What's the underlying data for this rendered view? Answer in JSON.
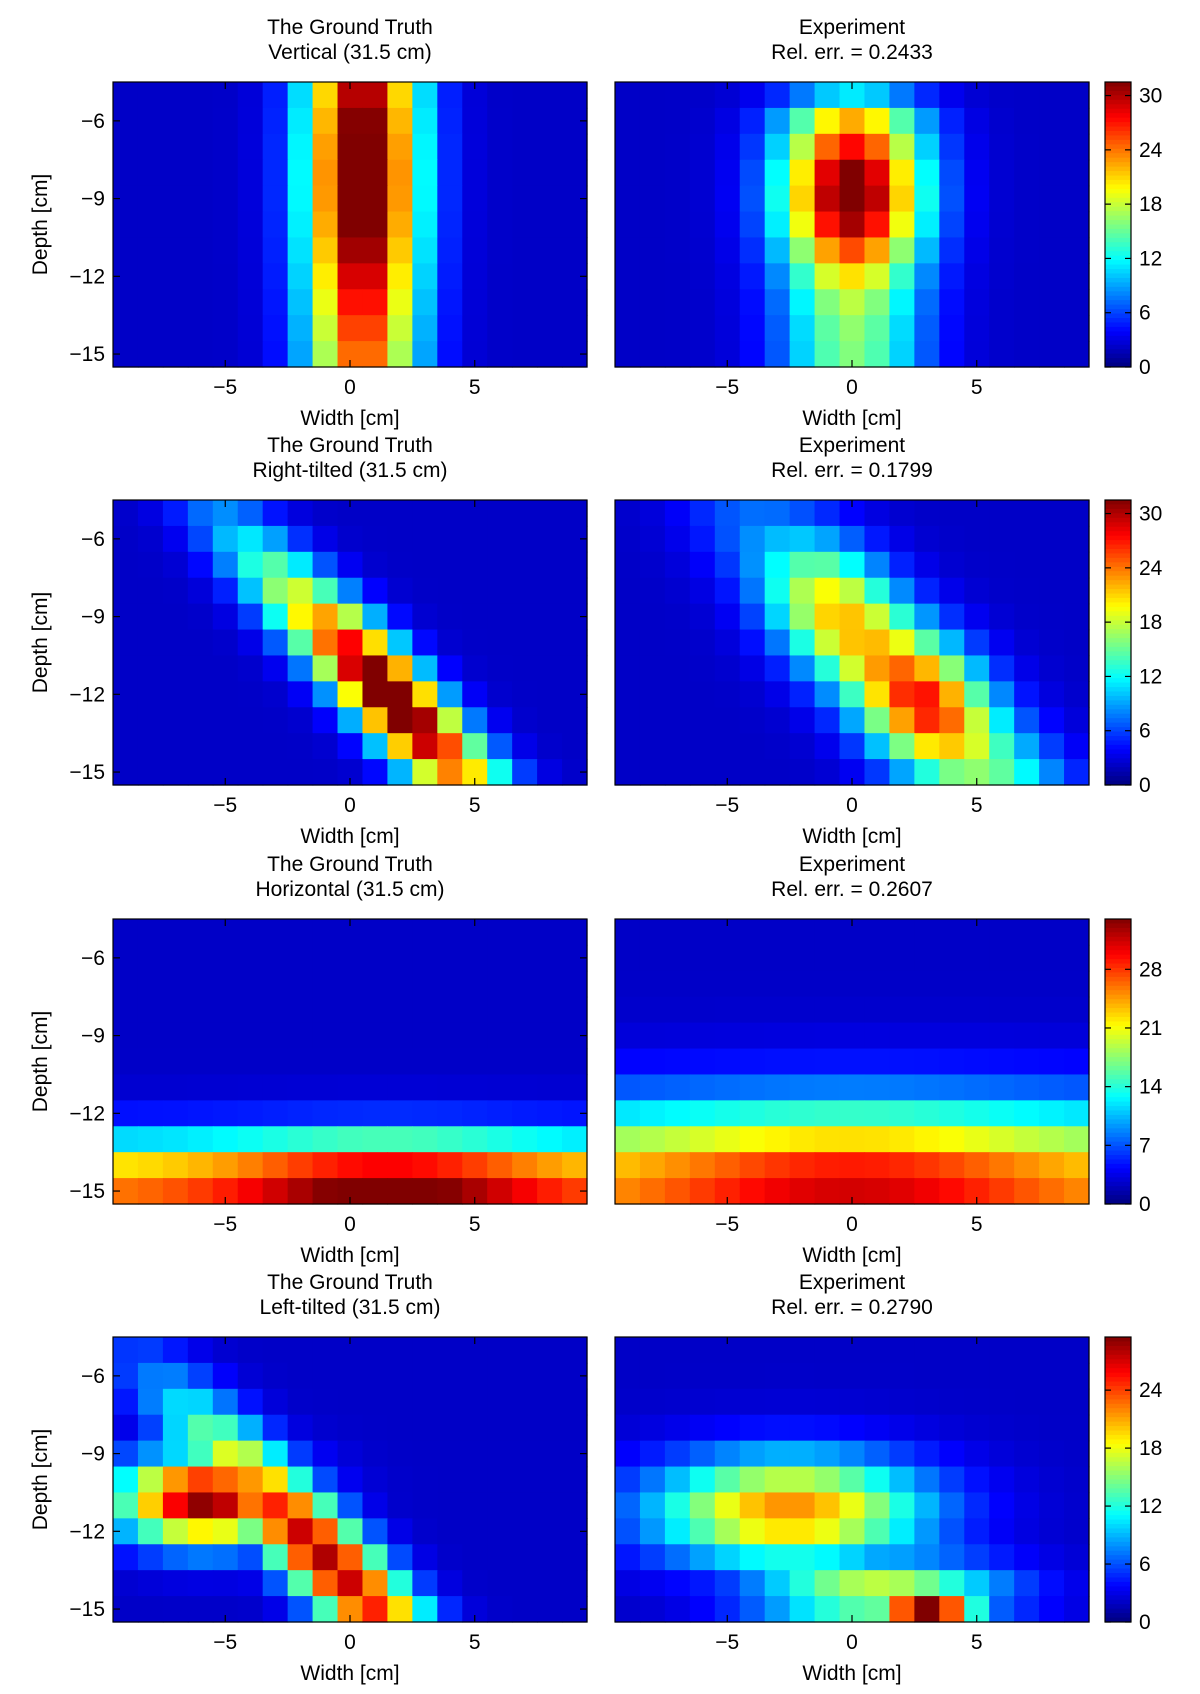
{
  "chart_data": [
    {
      "type": "heatmap",
      "title": [
        "The Ground Truth",
        "Vertical (31.5 cm)"
      ],
      "xlabel": "Width [cm]",
      "ylabel": "Depth [cm]",
      "xlim": [
        -9.5,
        9.5
      ],
      "ylim": [
        -15.5,
        -4.5
      ],
      "xticks": [
        -5,
        0,
        5
      ],
      "yticks": [
        -6,
        -9,
        -12,
        -15
      ],
      "xtick_labels": [
        "−5",
        "0",
        "5"
      ],
      "ytick_labels": [
        "−6",
        "−9",
        "−12",
        "−15"
      ],
      "colormap": "jet",
      "clim": [
        0,
        31.5
      ],
      "shape": "vertical",
      "colorbar": null
    },
    {
      "type": "heatmap",
      "title": [
        "Experiment",
        "Rel. err. = 0.2433"
      ],
      "xlabel": "Width [cm]",
      "ylabel": "",
      "xlim": [
        -9.5,
        9.5
      ],
      "ylim": [
        -15.5,
        -4.5
      ],
      "xticks": [
        -5,
        0,
        5
      ],
      "yticks": [],
      "xtick_labels": [
        "−5",
        "0",
        "5"
      ],
      "ytick_labels": [],
      "colormap": "jet",
      "clim": [
        0,
        31.5
      ],
      "shape": "vertical_exp",
      "colorbar": {
        "ticks": [
          0,
          6,
          12,
          18,
          24,
          30
        ],
        "labels": [
          "0",
          "6",
          "12",
          "18",
          "24",
          "30"
        ],
        "max": 31.5
      }
    },
    {
      "type": "heatmap",
      "title": [
        "The Ground Truth",
        "Right-tilted (31.5 cm)"
      ],
      "xlabel": "Width [cm]",
      "ylabel": "Depth [cm]",
      "xlim": [
        -9.5,
        9.5
      ],
      "ylim": [
        -15.5,
        -4.5
      ],
      "xticks": [
        -5,
        0,
        5
      ],
      "yticks": [
        -6,
        -9,
        -12,
        -15
      ],
      "xtick_labels": [
        "−5",
        "0",
        "5"
      ],
      "ytick_labels": [
        "−6",
        "−9",
        "−12",
        "−15"
      ],
      "colormap": "jet",
      "clim": [
        0,
        31.5
      ],
      "shape": "right",
      "colorbar": null
    },
    {
      "type": "heatmap",
      "title": [
        "Experiment",
        "Rel. err. = 0.1799"
      ],
      "xlabel": "Width [cm]",
      "ylabel": "",
      "xlim": [
        -9.5,
        9.5
      ],
      "ylim": [
        -15.5,
        -4.5
      ],
      "xticks": [
        -5,
        0,
        5
      ],
      "yticks": [],
      "xtick_labels": [
        "−5",
        "0",
        "5"
      ],
      "ytick_labels": [],
      "colormap": "jet",
      "clim": [
        0,
        31.5
      ],
      "shape": "right_exp",
      "colorbar": {
        "ticks": [
          0,
          6,
          12,
          18,
          24,
          30
        ],
        "labels": [
          "0",
          "6",
          "12",
          "18",
          "24",
          "30"
        ],
        "max": 31.5
      }
    },
    {
      "type": "heatmap",
      "title": [
        "The Ground Truth",
        "Horizontal (31.5 cm)"
      ],
      "xlabel": "Width [cm]",
      "ylabel": "Depth [cm]",
      "xlim": [
        -9.5,
        9.5
      ],
      "ylim": [
        -15.5,
        -4.5
      ],
      "xticks": [
        -5,
        0,
        5
      ],
      "yticks": [
        -6,
        -9,
        -12,
        -15
      ],
      "xtick_labels": [
        "−5",
        "0",
        "5"
      ],
      "ytick_labels": [
        "−6",
        "−9",
        "−12",
        "−15"
      ],
      "colormap": "jet",
      "clim": [
        0,
        34
      ],
      "shape": "horizontal",
      "colorbar": null
    },
    {
      "type": "heatmap",
      "title": [
        "Experiment",
        "Rel. err. = 0.2607"
      ],
      "xlabel": "Width [cm]",
      "ylabel": "",
      "xlim": [
        -9.5,
        9.5
      ],
      "ylim": [
        -15.5,
        -4.5
      ],
      "xticks": [
        -5,
        0,
        5
      ],
      "yticks": [],
      "xtick_labels": [
        "−5",
        "0",
        "5"
      ],
      "ytick_labels": [],
      "colormap": "jet",
      "clim": [
        0,
        34
      ],
      "shape": "horizontal_exp",
      "colorbar": {
        "ticks": [
          0,
          7,
          14,
          21,
          28
        ],
        "labels": [
          "0",
          "7",
          "14",
          "21",
          "28"
        ],
        "max": 34
      }
    },
    {
      "type": "heatmap",
      "title": [
        "The Ground Truth",
        "Left-tilted (31.5 cm)"
      ],
      "xlabel": "Width [cm]",
      "ylabel": "Depth [cm]",
      "xlim": [
        -9.5,
        9.5
      ],
      "ylim": [
        -15.5,
        -4.5
      ],
      "xticks": [
        -5,
        0,
        5
      ],
      "yticks": [
        -6,
        -9,
        -12,
        -15
      ],
      "xtick_labels": [
        "−5",
        "0",
        "5"
      ],
      "ytick_labels": [
        "−6",
        "−9",
        "−12",
        "−15"
      ],
      "colormap": "jet",
      "clim": [
        0,
        29.5
      ],
      "shape": "left",
      "colorbar": null
    },
    {
      "type": "heatmap",
      "title": [
        "Experiment",
        "Rel. err. = 0.2790"
      ],
      "xlabel": "Width [cm]",
      "ylabel": "",
      "xlim": [
        -9.5,
        9.5
      ],
      "ylim": [
        -15.5,
        -4.5
      ],
      "xticks": [
        -5,
        0,
        5
      ],
      "yticks": [],
      "xtick_labels": [
        "−5",
        "0",
        "5"
      ],
      "ytick_labels": [],
      "colormap": "jet",
      "clim": [
        0,
        29.5
      ],
      "shape": "left_exp",
      "colorbar": {
        "ticks": [
          0,
          6,
          12,
          18,
          24
        ],
        "labels": [
          "0",
          "6",
          "12",
          "18",
          "24"
        ],
        "max": 29.5
      }
    }
  ]
}
